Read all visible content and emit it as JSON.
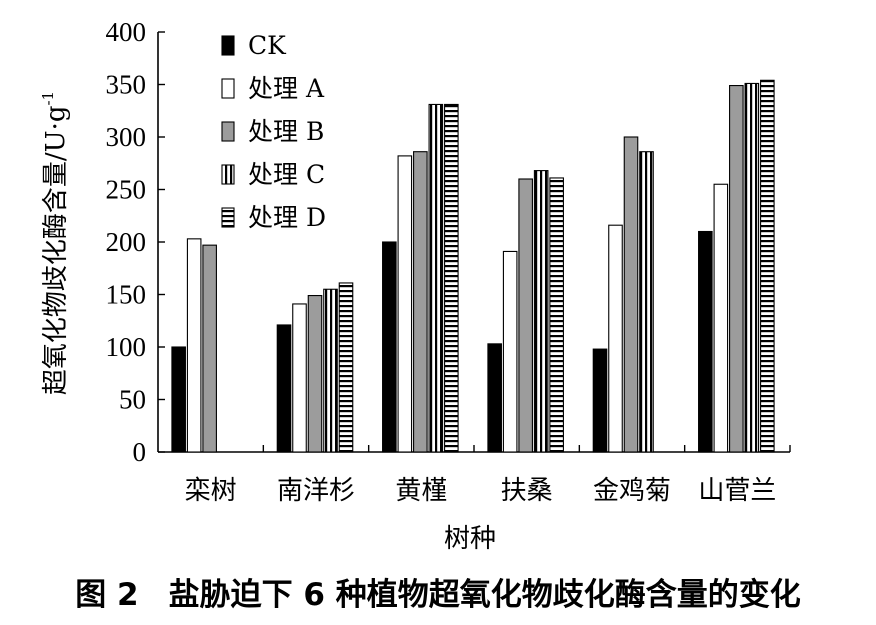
{
  "chart_data": {
    "type": "bar",
    "title": "",
    "xlabel": "树种",
    "ylabel": "超氧化物歧化酶含量/U·g",
    "ylabel_sup": "-1",
    "ylim": [
      0,
      400
    ],
    "yticks": [
      0,
      50,
      100,
      150,
      200,
      250,
      300,
      350,
      400
    ],
    "grid": false,
    "legend_placement": "top-left",
    "categories": [
      "栾树",
      "南洋杉",
      "黄槿",
      "扶桑",
      "金鸡菊",
      "山菅兰"
    ],
    "series": [
      {
        "name": "CK",
        "values": [
          100,
          121,
          200,
          103,
          98,
          210
        ]
      },
      {
        "name": "处理 A",
        "values": [
          203,
          141,
          282,
          191,
          216,
          255
        ]
      },
      {
        "name": "处理 B",
        "values": [
          197,
          149,
          286,
          260,
          300,
          349
        ]
      },
      {
        "name": "处理 C",
        "values": [
          null,
          155,
          331,
          268,
          286,
          351
        ]
      },
      {
        "name": "处理 D",
        "values": [
          null,
          161,
          331,
          261,
          null,
          354
        ]
      }
    ]
  },
  "figure": {
    "caption_label": "图 2",
    "caption_text": "盐胁迫下 6 种植物超氧化物歧化酶含量的变化"
  },
  "fills": {
    "black": "#000000",
    "white": "#ffffff",
    "gray": "#9c9c9c",
    "stroke": "#000000"
  }
}
